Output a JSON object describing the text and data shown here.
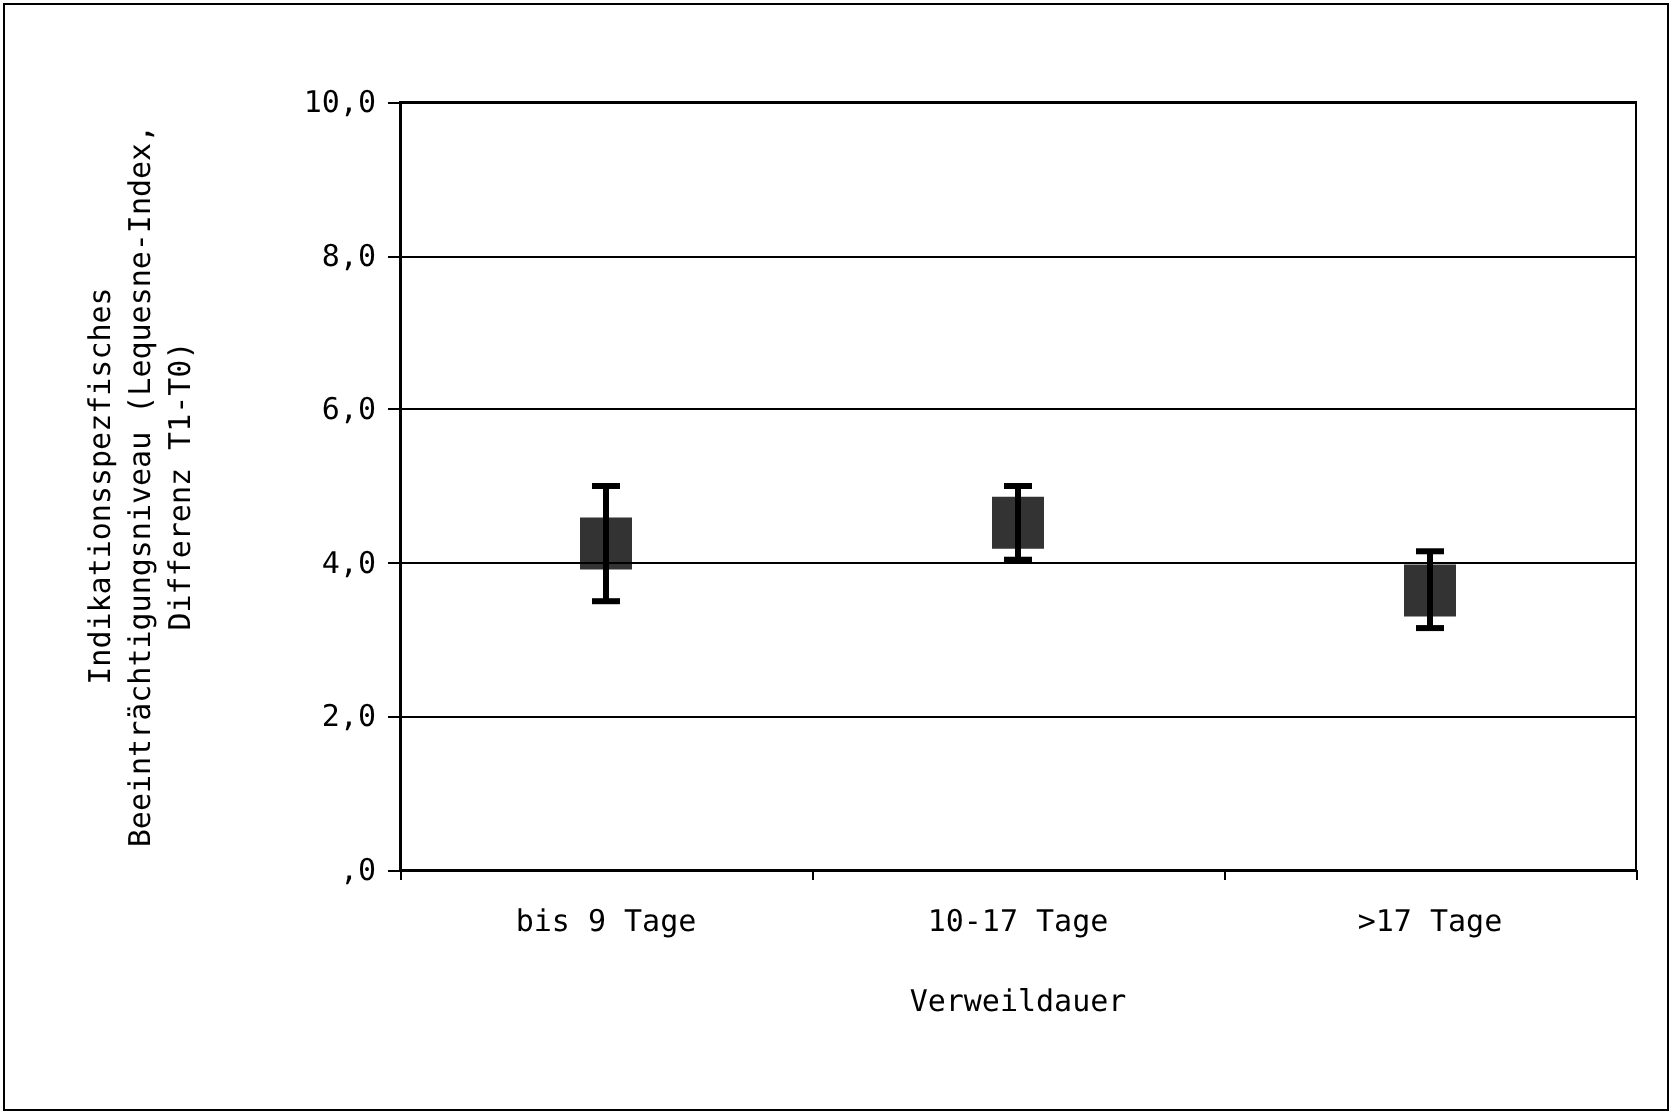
{
  "chart_data": {
    "type": "scatter",
    "xlabel": "Verweildauer",
    "ylabel": "Indikationsspezfisches\nBeeinträchtigungsniveau (Lequesne-Index,\nDifferenz T1-T0)",
    "categories": [
      "bis 9 Tage",
      "10-17 Tage",
      ">17 Tage"
    ],
    "values": [
      4.25,
      4.52,
      3.64
    ],
    "errors": [
      [
        3.5,
        5.0
      ],
      [
        4.04,
        5.0
      ],
      [
        3.15,
        4.15
      ]
    ],
    "color": "#000000",
    "marker": "square",
    "ylim": [
      0,
      10
    ],
    "yticks": [
      {
        "value": 0,
        "label": ",0"
      },
      {
        "value": 2,
        "label": "2,0"
      },
      {
        "value": 4,
        "label": "4,0"
      },
      {
        "value": 6,
        "label": "6,0"
      },
      {
        "value": 8,
        "label": "8,0"
      },
      {
        "value": 10,
        "label": "10,0"
      }
    ],
    "grid": "y"
  }
}
